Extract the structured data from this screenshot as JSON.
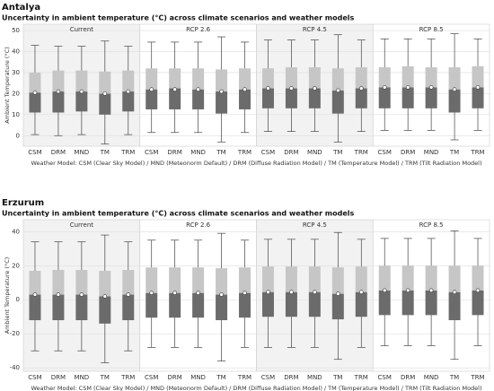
{
  "chart_data": [
    {
      "type": "box",
      "title": "Antalya",
      "subtitle": "Uncertainty in ambient temperature (°C) across climate scenarios and weather models",
      "ylabel": "Ambient Temperature (°C)",
      "xlabel": "Weather Model: CSM (Clear Sky Model) / MND (Meteonorm Default) / DRM (Diffuse Radiation Model) / TM (Temperature Model) / TRM (Tilt Radiation Model)",
      "ylim": [
        -5,
        53
      ],
      "yticks": [
        0,
        10,
        20,
        30,
        40,
        50
      ],
      "grid": true,
      "colors": {
        "lower": "#6b6b6b",
        "upper": "#c6c6c6",
        "shade": "#f2f2f2"
      },
      "categories": [
        "CSM",
        "DRM",
        "MND",
        "TM",
        "TRM"
      ],
      "panels": [
        {
          "name": "Current",
          "shaded": true,
          "min": [
            0.5,
            0,
            0.5,
            -4,
            0.5
          ],
          "q1": [
            11,
            11,
            11.5,
            10,
            11.5
          ],
          "median": [
            20.5,
            21,
            21,
            20,
            21
          ],
          "q3": [
            30,
            31,
            31,
            30.5,
            31
          ],
          "max": [
            43,
            42.5,
            42.5,
            45,
            42.5
          ],
          "mean": [
            20.5,
            21,
            21,
            20,
            21
          ]
        },
        {
          "name": "RCP 2.6",
          "shaded": false,
          "min": [
            1.5,
            1.5,
            1.5,
            -3,
            1.5
          ],
          "q1": [
            12.5,
            12.5,
            12.5,
            10.5,
            12.5
          ],
          "median": [
            22,
            22.5,
            22,
            21,
            22
          ],
          "q3": [
            32,
            32,
            32,
            31.5,
            32
          ],
          "max": [
            44.5,
            44.5,
            44.5,
            47,
            44.5
          ],
          "mean": [
            22,
            22,
            22,
            21,
            22
          ]
        },
        {
          "name": "RCP 4.5",
          "shaded": true,
          "min": [
            2,
            2,
            2,
            -3,
            2
          ],
          "q1": [
            13,
            13,
            13,
            10.5,
            13
          ],
          "median": [
            22.5,
            22.5,
            22.5,
            21.5,
            22.5
          ],
          "q3": [
            32,
            32.5,
            32.5,
            32,
            32.5
          ],
          "max": [
            45.5,
            45.5,
            45.5,
            48,
            45.5
          ],
          "mean": [
            22.5,
            22.5,
            22.5,
            21.5,
            22.5
          ]
        },
        {
          "name": "RCP 8.5",
          "shaded": false,
          "min": [
            2.5,
            2.5,
            2.5,
            -2,
            2.5
          ],
          "q1": [
            13,
            13,
            13,
            11,
            13
          ],
          "median": [
            23,
            23,
            23,
            22,
            23
          ],
          "q3": [
            32.5,
            33,
            32.5,
            32.5,
            33
          ],
          "max": [
            46,
            46,
            46,
            48.5,
            46
          ],
          "mean": [
            23,
            23,
            23,
            22,
            23
          ]
        }
      ]
    },
    {
      "type": "box",
      "title": "Erzurum",
      "subtitle": "Uncertainty in ambient temperature (°C) across climate scenarios and weather models",
      "ylabel": "Ambient Temperature (°C)",
      "xlabel": "Weather Model: CSM (Clear Sky Model) / MND (Meteonorm Default) / DRM (Diffuse Radiation Model) / TM (Temperature Model) / TRM (Tilt Radiation Model)",
      "ylim": [
        -42,
        47
      ],
      "yticks": [
        -40,
        -20,
        0,
        20,
        40
      ],
      "grid": true,
      "colors": {
        "lower": "#6b6b6b",
        "upper": "#c6c6c6",
        "shade": "#f2f2f2"
      },
      "categories": [
        "CSM",
        "DRM",
        "MND",
        "TM",
        "TRM"
      ],
      "panels": [
        {
          "name": "Current",
          "shaded": true,
          "min": [
            -30,
            -30,
            -30,
            -37,
            -30
          ],
          "q1": [
            -12,
            -12,
            -12,
            -14,
            -12
          ],
          "median": [
            3,
            3,
            3,
            2,
            3
          ],
          "q3": [
            17,
            17.5,
            17.5,
            17,
            17.5
          ],
          "max": [
            34,
            34,
            34,
            38,
            34
          ],
          "mean": [
            3,
            3,
            3,
            2,
            3
          ]
        },
        {
          "name": "RCP 2.6",
          "shaded": false,
          "min": [
            -28,
            -28,
            -28,
            -36,
            -28
          ],
          "q1": [
            -10.5,
            -10.5,
            -10.5,
            -12,
            -10.5
          ],
          "median": [
            4,
            4,
            4,
            3,
            4
          ],
          "q3": [
            19,
            19,
            19,
            18.5,
            19
          ],
          "max": [
            35,
            35,
            35,
            39,
            35
          ],
          "mean": [
            4,
            4,
            4,
            3,
            4
          ]
        },
        {
          "name": "RCP 4.5",
          "shaded": true,
          "min": [
            -28,
            -28,
            -28,
            -35,
            -28
          ],
          "q1": [
            -10,
            -10,
            -10,
            -11.5,
            -10
          ],
          "median": [
            4.5,
            4.5,
            4.5,
            3.5,
            4.5
          ],
          "q3": [
            19.5,
            19.5,
            19.5,
            19,
            19.5
          ],
          "max": [
            35.5,
            35.5,
            35.5,
            39.5,
            35.5
          ],
          "mean": [
            4.5,
            4.5,
            4.5,
            3.5,
            4.5
          ]
        },
        {
          "name": "RCP 8.5",
          "shaded": false,
          "min": [
            -27,
            -27,
            -27,
            -35,
            -27
          ],
          "q1": [
            -9,
            -9,
            -9,
            -12,
            -9
          ],
          "median": [
            5.5,
            5.5,
            5.5,
            4.5,
            5.5
          ],
          "q3": [
            20,
            20,
            20,
            20,
            20
          ],
          "max": [
            36,
            36,
            36,
            40.5,
            36
          ],
          "mean": [
            5.5,
            5.5,
            5.5,
            4.5,
            5.5
          ]
        }
      ]
    }
  ]
}
